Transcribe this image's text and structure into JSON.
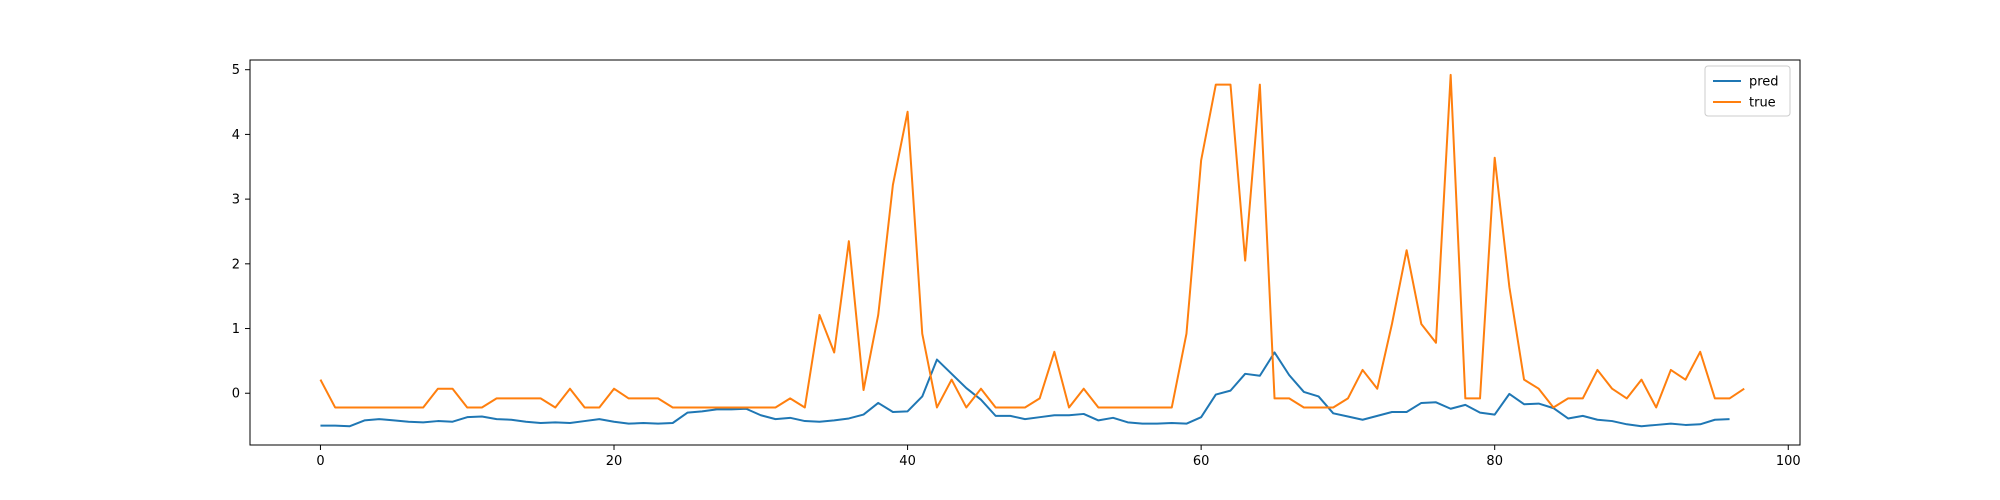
{
  "chart_data": {
    "type": "line",
    "title": "",
    "xlabel": "",
    "ylabel": "",
    "xlim": [
      -4.8,
      100.8
    ],
    "ylim": [
      -0.8,
      5.15
    ],
    "xticks": [
      0,
      20,
      40,
      60,
      80,
      100
    ],
    "yticks": [
      0,
      1,
      2,
      3,
      4,
      5
    ],
    "xtick_labels": [
      "0",
      "20",
      "40",
      "60",
      "80",
      "100"
    ],
    "ytick_labels": [
      "0",
      "1",
      "2",
      "3",
      "4",
      "5"
    ],
    "grid": false,
    "legend_position": "top-right",
    "series": [
      {
        "name": "pred",
        "color": "#1f77b4",
        "values": [
          -0.5,
          -0.5,
          -0.51,
          -0.42,
          -0.4,
          -0.42,
          -0.44,
          -0.45,
          -0.43,
          -0.44,
          -0.37,
          -0.36,
          -0.4,
          -0.41,
          -0.44,
          -0.46,
          -0.45,
          -0.46,
          -0.43,
          -0.4,
          -0.44,
          -0.47,
          -0.46,
          -0.47,
          -0.46,
          -0.3,
          -0.28,
          -0.25,
          -0.25,
          -0.24,
          -0.34,
          -0.4,
          -0.38,
          -0.43,
          -0.44,
          -0.42,
          -0.39,
          -0.33,
          -0.15,
          -0.29,
          -0.28,
          -0.05,
          0.52,
          0.3,
          0.08,
          -0.1,
          -0.35,
          -0.35,
          -0.4,
          -0.37,
          -0.34,
          -0.34,
          -0.32,
          -0.42,
          -0.38,
          -0.45,
          -0.47,
          -0.47,
          -0.46,
          -0.47,
          -0.37,
          -0.02,
          0.04,
          0.3,
          0.27,
          0.63,
          0.28,
          0.02,
          -0.05,
          -0.31,
          -0.36,
          -0.41,
          -0.35,
          -0.29,
          -0.29,
          -0.15,
          -0.14,
          -0.24,
          -0.18,
          -0.3,
          -0.33,
          -0.01,
          -0.17,
          -0.16,
          -0.23,
          -0.39,
          -0.35,
          -0.41,
          -0.43,
          -0.48,
          -0.51,
          -0.49,
          -0.47,
          -0.49,
          -0.48,
          -0.41,
          -0.4
        ]
      },
      {
        "name": "true",
        "color": "#ff7f0e",
        "values": [
          0.21,
          -0.22,
          -0.22,
          -0.22,
          -0.22,
          -0.22,
          -0.22,
          -0.22,
          0.07,
          0.07,
          -0.22,
          -0.22,
          -0.08,
          -0.08,
          -0.08,
          -0.08,
          -0.22,
          0.07,
          -0.22,
          -0.22,
          0.07,
          -0.08,
          -0.08,
          -0.08,
          -0.22,
          -0.22,
          -0.22,
          -0.22,
          -0.22,
          -0.22,
          -0.22,
          -0.22,
          -0.08,
          -0.22,
          1.21,
          0.63,
          2.35,
          0.05,
          1.21,
          3.22,
          4.35,
          0.92,
          -0.22,
          0.21,
          -0.22,
          0.07,
          -0.22,
          -0.22,
          -0.22,
          -0.08,
          0.64,
          -0.22,
          0.07,
          -0.22,
          -0.22,
          -0.22,
          -0.22,
          -0.22,
          -0.22,
          0.92,
          3.6,
          4.77,
          4.77,
          2.05,
          4.77,
          -0.08,
          -0.08,
          -0.22,
          -0.22,
          -0.22,
          -0.08,
          0.36,
          0.07,
          1.07,
          2.21,
          1.07,
          0.78,
          4.92,
          -0.08,
          -0.08,
          3.64,
          1.64,
          0.21,
          0.07,
          -0.22,
          -0.08,
          -0.08,
          0.36,
          0.07,
          -0.08,
          0.21,
          -0.22,
          0.36,
          0.21,
          0.64,
          -0.08,
          -0.08,
          0.07
        ]
      }
    ]
  }
}
